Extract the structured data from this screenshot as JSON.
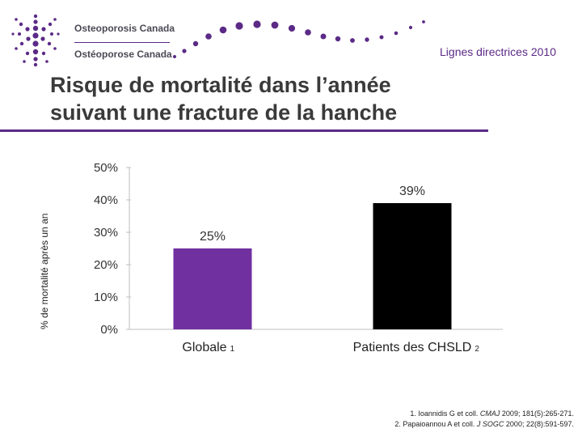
{
  "header": {
    "org_name_en": "Osteoporosis Canada",
    "org_name_fr": "Ostéoporose Canada",
    "subtitle": "Lignes directrices 2010"
  },
  "title_line1": "Risque de mortalité dans l’année",
  "title_line2": "suivant une fracture de la hanche",
  "colors": {
    "accent": "#5b2a86",
    "bar1": "#7030a0",
    "bar2": "#000000"
  },
  "chart_data": {
    "type": "bar",
    "title": "Risque de mortalité dans l’année suivant une fracture de la hanche",
    "xlabel": "",
    "ylabel": "% de mortalité après un an",
    "ylim": [
      0,
      50
    ],
    "yticks": [
      "0%",
      "10%",
      "20%",
      "30%",
      "40%",
      "50%"
    ],
    "categories": [
      "Globale",
      "Patients des CHSLD"
    ],
    "category_refs": [
      "1",
      "2"
    ],
    "values": [
      25,
      39
    ],
    "data_labels": [
      "25%",
      "39%"
    ]
  },
  "references": [
    {
      "prefix": "1. Ioannidis G et coll. ",
      "journal": "CMAJ",
      "suffix": " 2009; 181(5):265-271."
    },
    {
      "prefix": "2. Papaioannou A et coll. ",
      "journal": "J SOGC",
      "suffix": " 2000; 22(8):591-597."
    }
  ]
}
